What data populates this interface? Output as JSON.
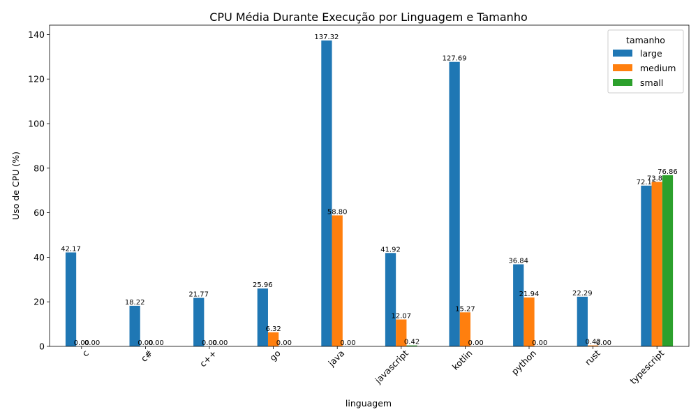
{
  "chart_data": {
    "type": "bar",
    "title": "CPU Média Durante Execução por Linguagem e Tamanho",
    "xlabel": "linguagem",
    "ylabel": "Uso de CPU (%)",
    "ylim": [
      0,
      144.2
    ],
    "yticks": [
      0,
      20,
      40,
      60,
      80,
      100,
      120,
      140
    ],
    "grid": false,
    "legend": {
      "title": "tamanho",
      "position": "top-right"
    },
    "categories": [
      "c",
      "c#",
      "c++",
      "go",
      "java",
      "javascript",
      "kotlin",
      "python",
      "rust",
      "typescript"
    ],
    "series": [
      {
        "name": "large",
        "color": "#1f77b4",
        "values": [
          42.17,
          18.22,
          21.77,
          25.96,
          137.32,
          41.92,
          127.69,
          36.84,
          22.29,
          72.16
        ]
      },
      {
        "name": "medium",
        "color": "#ff7f0e",
        "values": [
          0.0,
          0.0,
          0.0,
          6.32,
          58.8,
          12.07,
          15.27,
          21.94,
          0.42,
          73.83
        ]
      },
      {
        "name": "small",
        "color": "#2ca02c",
        "values": [
          0.0,
          0.0,
          0.0,
          0.0,
          0.0,
          0.42,
          0.0,
          0.0,
          0.0,
          76.86
        ]
      }
    ]
  }
}
